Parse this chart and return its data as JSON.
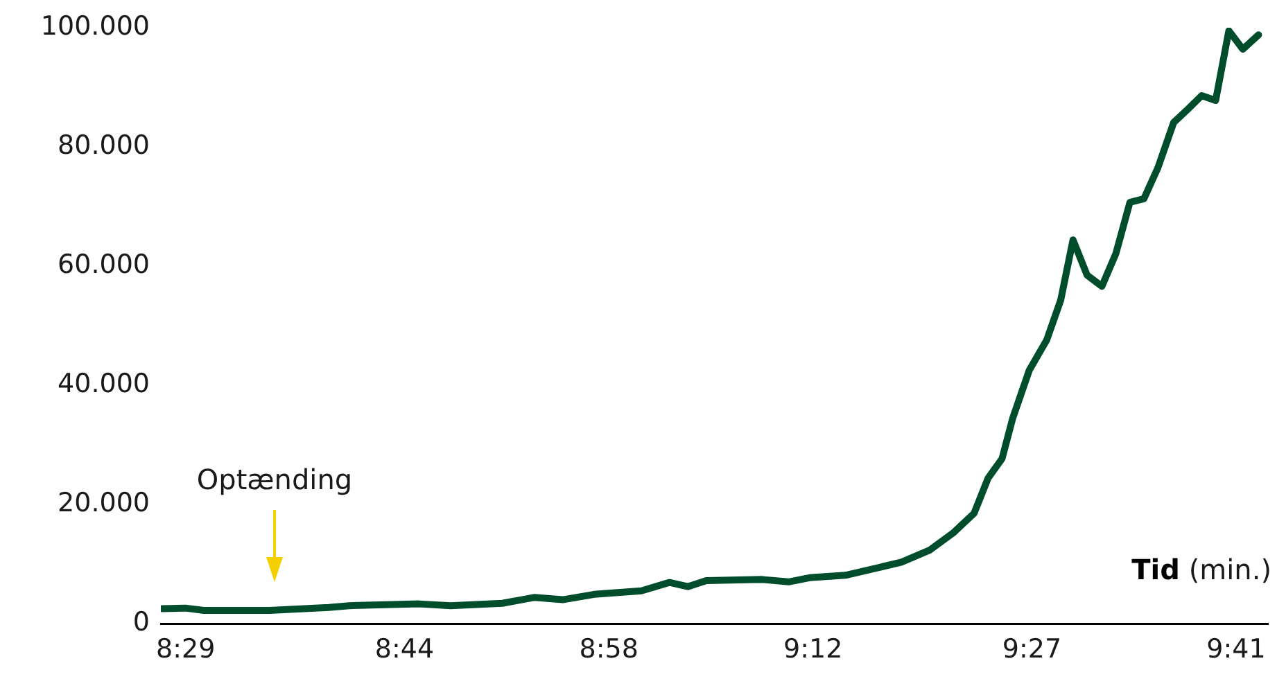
{
  "chart_data": {
    "type": "line",
    "xlabel": "Tid (min.)",
    "x": [
      8.456,
      8.483,
      8.504,
      8.579,
      8.647,
      8.67,
      8.75,
      8.786,
      8.845,
      8.882,
      8.914,
      8.95,
      9.004,
      9.036,
      9.057,
      9.078,
      9.142,
      9.172,
      9.196,
      9.237,
      9.301,
      9.333,
      9.36,
      9.384,
      9.4,
      9.416,
      9.428,
      9.447,
      9.467,
      9.483,
      9.497,
      9.513,
      9.53,
      9.546,
      9.562,
      9.578,
      9.594,
      9.612,
      9.628,
      9.644,
      9.66,
      9.675,
      9.691,
      9.709
    ],
    "series": [
      {
        "color": "#004d2c",
        "values": [
          2500,
          2600,
          2200,
          2200,
          2700,
          3000,
          3300,
          3000,
          3400,
          4400,
          4000,
          4900,
          5500,
          6900,
          6200,
          7200,
          7400,
          7000,
          7700,
          8100,
          10300,
          12300,
          15200,
          18500,
          24400,
          27700,
          34400,
          42500,
          47600,
          54300,
          64400,
          58500,
          56600,
          62100,
          70700,
          71300,
          76500,
          84100,
          86300,
          88600,
          87800,
          99500,
          96400,
          98800
        ]
      }
    ],
    "xlim": [
      8.455,
      9.72
    ],
    "xticks": [
      {
        "value": 8.4833,
        "label": "8:29"
      },
      {
        "value": 8.7333,
        "label": "8:44"
      },
      {
        "value": 8.9667,
        "label": "8:58"
      },
      {
        "value": 9.2,
        "label": "9:12"
      },
      {
        "value": 9.45,
        "label": "9:27"
      },
      {
        "value": 9.6833,
        "label": "9:41"
      }
    ],
    "ylim": [
      0,
      100000
    ],
    "yticks": [
      {
        "value": 0,
        "label": "0"
      },
      {
        "value": 20000,
        "label": "20.000"
      },
      {
        "value": 40000,
        "label": "40.000"
      },
      {
        "value": 60000,
        "label": "60.000"
      },
      {
        "value": 80000,
        "label": "80.000"
      },
      {
        "value": 100000,
        "label": "100.000"
      }
    ],
    "annotations": [
      "Optænding"
    ],
    "grid": false,
    "legend": false,
    "marker": "none",
    "line_style": "solid"
  }
}
